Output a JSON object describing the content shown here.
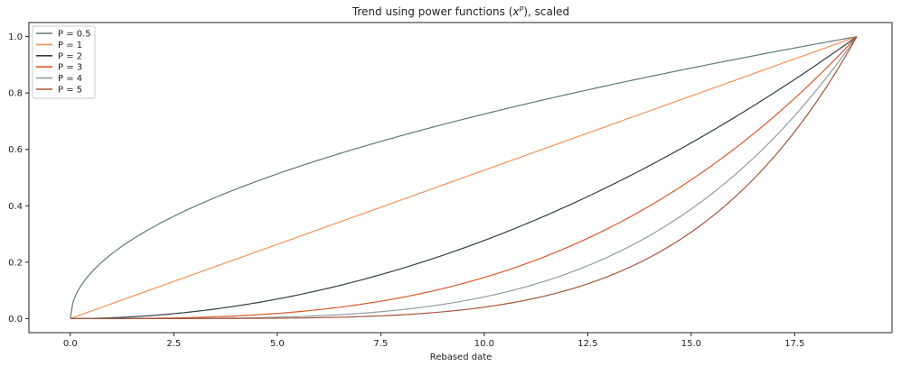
{
  "chart_data": {
    "type": "line",
    "title_prefix": "Trend using power functions (",
    "title_base": "x",
    "title_exp": "P",
    "title_suffix": "), scaled",
    "xlabel": "Rebased date",
    "ylabel": "",
    "xlim": [
      -1,
      19.85
    ],
    "ylim": [
      -0.05,
      1.05
    ],
    "x_ticks": [
      "0.0",
      "2.5",
      "5.0",
      "7.5",
      "10.0",
      "12.5",
      "15.0",
      "17.5"
    ],
    "y_ticks": [
      "0.0",
      "0.2",
      "0.4",
      "0.6",
      "0.8",
      "1.0"
    ],
    "x_domain": [
      0,
      19
    ],
    "grid": false,
    "legend_position": "upper-left",
    "series": [
      {
        "name": "P = 0.5",
        "power": 0.5,
        "color": "#5f7a7a"
      },
      {
        "name": "P = 1",
        "power": 1,
        "color": "#f2925a"
      },
      {
        "name": "P = 2",
        "power": 2,
        "color": "#2f3f48"
      },
      {
        "name": "P = 3",
        "power": 3,
        "color": "#d9582c"
      },
      {
        "name": "P = 4",
        "power": 4,
        "color": "#8e9ea3"
      },
      {
        "name": "P = 5",
        "power": 5,
        "color": "#a5553d"
      }
    ]
  }
}
